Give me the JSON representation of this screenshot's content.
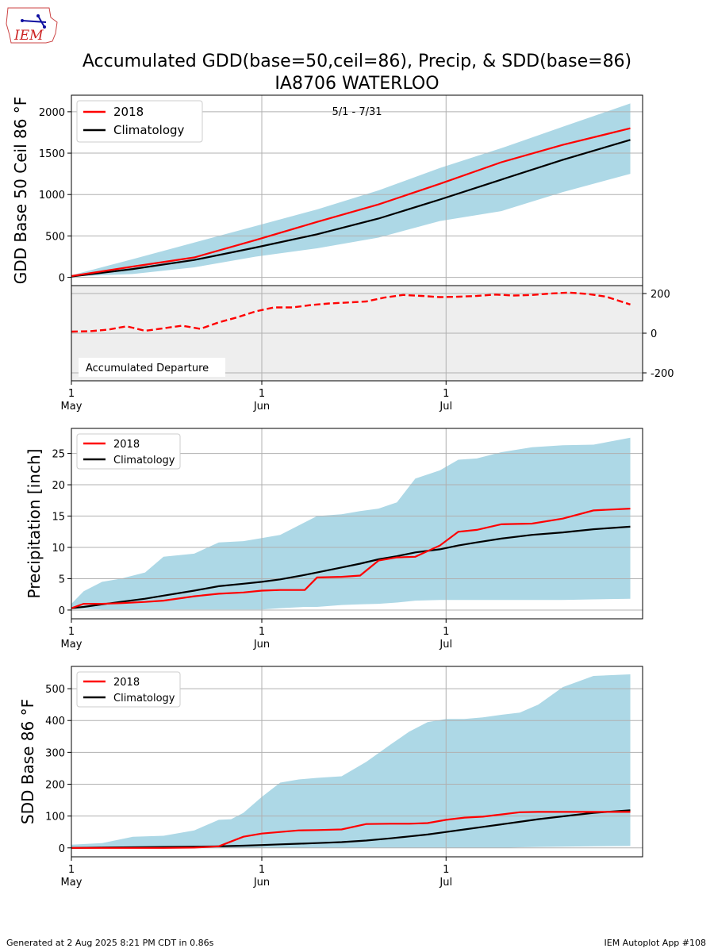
{
  "header": {
    "logo_text": "IEM",
    "title_line1": "Accumulated GDD(base=50,ceil=86), Precip, & SDD(base=86)",
    "title_line2": "IA8706 WATERLOO"
  },
  "footer": {
    "generated": "Generated at 2 Aug 2025 8:21 PM CDT in 0.86s",
    "app": "IEM Autoplot App #108"
  },
  "colors": {
    "year": "#ff0000",
    "climo": "#000000",
    "band": "#add8e6",
    "departure_bg": "#eeeeee",
    "grid": "#b0b0b0"
  },
  "chart_data": [
    {
      "id": "gdd",
      "type": "area",
      "ylabel": "GDD Base 50 Ceil 86 °F",
      "annotation": "5/1 - 7/31",
      "legend": {
        "position": "top-left",
        "entries": [
          "2018",
          "Climatology"
        ]
      },
      "xlim": [
        0,
        93
      ],
      "ylim": [
        -100,
        2200
      ],
      "yticks": [
        0,
        500,
        1000,
        1500,
        2000
      ],
      "xticks": [
        {
          "x": 0,
          "day": "1",
          "month": "May"
        },
        {
          "x": 31,
          "day": "1",
          "month": "Jun"
        },
        {
          "x": 61,
          "day": "1",
          "month": "Jul"
        }
      ],
      "grid": true,
      "x": [
        0,
        10,
        20,
        30,
        40,
        50,
        60,
        70,
        80,
        91
      ],
      "year": [
        15,
        130,
        240,
        450,
        670,
        880,
        1130,
        1390,
        1600,
        1800
      ],
      "climo": [
        10,
        100,
        210,
        360,
        520,
        710,
        940,
        1180,
        1420,
        1660
      ],
      "band_max": [
        25,
        220,
        420,
        620,
        820,
        1050,
        1320,
        1560,
        1820,
        2100
      ],
      "band_min": [
        10,
        40,
        120,
        250,
        350,
        480,
        680,
        800,
        1030,
        1250
      ]
    },
    {
      "id": "departure",
      "type": "line",
      "label": "Accumulated Departure",
      "xlim": [
        0,
        93
      ],
      "ylim": [
        -240,
        240
      ],
      "yticks": [
        -200,
        0,
        200
      ],
      "grid": true,
      "x": [
        0,
        3,
        6,
        9,
        12,
        15,
        18,
        21,
        24,
        27,
        30,
        33,
        36,
        39,
        42,
        45,
        48,
        51,
        54,
        57,
        60,
        63,
        66,
        69,
        72,
        75,
        78,
        81,
        84,
        87,
        91
      ],
      "values": [
        8,
        10,
        18,
        35,
        12,
        25,
        38,
        22,
        55,
        80,
        110,
        130,
        130,
        142,
        150,
        155,
        160,
        180,
        193,
        188,
        182,
        184,
        188,
        195,
        190,
        193,
        200,
        205,
        198,
        185,
        145
      ]
    },
    {
      "id": "precip",
      "type": "area",
      "ylabel": "Precipitation [inch]",
      "legend": {
        "position": "top-left",
        "entries": [
          "2018",
          "Climatology"
        ]
      },
      "xlim": [
        0,
        93
      ],
      "ylim": [
        -1.4,
        29
      ],
      "yticks": [
        0,
        5,
        10,
        15,
        20,
        25
      ],
      "xticks": [
        {
          "x": 0,
          "day": "1",
          "month": "May"
        },
        {
          "x": 31,
          "day": "1",
          "month": "Jun"
        },
        {
          "x": 61,
          "day": "1",
          "month": "Jul"
        }
      ],
      "grid": true,
      "x": [
        0,
        2,
        5,
        8,
        12,
        15,
        20,
        24,
        28,
        31,
        34,
        38,
        40,
        44,
        47,
        50,
        53,
        56,
        60,
        63,
        66,
        70,
        75,
        80,
        85,
        91
      ],
      "year": [
        0.3,
        1.0,
        1.0,
        1.1,
        1.3,
        1.5,
        2.2,
        2.6,
        2.8,
        3.1,
        3.2,
        3.2,
        5.2,
        5.3,
        5.5,
        7.9,
        8.4,
        8.5,
        10.3,
        12.5,
        12.8,
        13.7,
        13.8,
        14.6,
        15.9,
        16.2
      ],
      "climo": [
        0.3,
        0.5,
        0.9,
        1.3,
        1.8,
        2.3,
        3.1,
        3.8,
        4.2,
        4.5,
        4.9,
        5.6,
        6.0,
        6.8,
        7.4,
        8.1,
        8.6,
        9.2,
        9.7,
        10.3,
        10.8,
        11.4,
        12.0,
        12.4,
        12.9,
        13.3
      ],
      "band_max": [
        1.0,
        3.0,
        4.5,
        5.0,
        6.0,
        8.5,
        9.0,
        10.8,
        11.0,
        11.5,
        12.0,
        14.0,
        15.0,
        15.3,
        15.8,
        16.2,
        17.2,
        21.0,
        22.3,
        24.0,
        24.2,
        25.2,
        26.0,
        26.3,
        26.4,
        27.5
      ],
      "band_min": [
        0.2,
        0.2,
        0.1,
        0.1,
        0.1,
        0.1,
        0.1,
        0.1,
        0.1,
        0.1,
        0.3,
        0.5,
        0.5,
        0.8,
        0.9,
        1.0,
        1.2,
        1.5,
        1.6,
        1.6,
        1.6,
        1.6,
        1.6,
        1.6,
        1.7,
        1.8
      ]
    },
    {
      "id": "sdd",
      "type": "area",
      "ylabel": "SDD Base 86 °F",
      "legend": {
        "position": "top-left",
        "entries": [
          "2018",
          "Climatology"
        ]
      },
      "xlim": [
        0,
        93
      ],
      "ylim": [
        -28,
        570
      ],
      "yticks": [
        0,
        100,
        200,
        300,
        400,
        500
      ],
      "xticks": [
        {
          "x": 0,
          "day": "1",
          "month": "May"
        },
        {
          "x": 31,
          "day": "1",
          "month": "Jun"
        },
        {
          "x": 61,
          "day": "1",
          "month": "Jul"
        }
      ],
      "grid": true,
      "x": [
        0,
        5,
        10,
        15,
        20,
        24,
        26,
        28,
        31,
        34,
        37,
        40,
        44,
        48,
        52,
        55,
        58,
        61,
        64,
        67,
        70,
        73,
        76,
        80,
        85,
        91
      ],
      "year": [
        0,
        0,
        0,
        0,
        1,
        5,
        20,
        35,
        45,
        50,
        55,
        56,
        58,
        75,
        76,
        76,
        78,
        88,
        95,
        98,
        105,
        112,
        113,
        113,
        113,
        113
      ],
      "climo": [
        0,
        1,
        2,
        3,
        4,
        5,
        6,
        7,
        9,
        11,
        13,
        15,
        18,
        23,
        30,
        36,
        42,
        50,
        58,
        66,
        74,
        82,
        90,
        99,
        110,
        118
      ],
      "band_max": [
        10,
        15,
        35,
        38,
        55,
        88,
        90,
        110,
        160,
        205,
        215,
        220,
        225,
        270,
        325,
        365,
        395,
        405,
        405,
        410,
        418,
        425,
        450,
        505,
        540,
        545
      ],
      "band_min": [
        0,
        0,
        0,
        0,
        0,
        0,
        0,
        0,
        0,
        0,
        0,
        0,
        0,
        0,
        0,
        0,
        0,
        0,
        0,
        0,
        0,
        2,
        3,
        4,
        5,
        6
      ]
    }
  ]
}
